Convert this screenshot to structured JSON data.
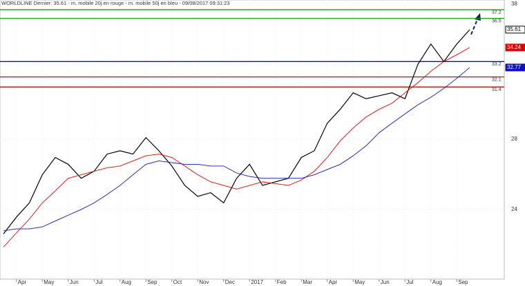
{
  "chart_data": {
    "type": "line",
    "log_scale": true,
    "grid": true,
    "title": "WORLDLINE Dernier: 35.61 - m. mobile 20j en rouge - m. mobile 50j en bleu - 09/08/2017 09:31:23",
    "categories": [
      null,
      "Apr",
      null,
      "May",
      null,
      "Jun",
      null,
      "Jul",
      null,
      "Aug",
      null,
      "Sep",
      null,
      "Oct",
      null,
      "Nov",
      null,
      "Dec",
      null,
      "2017",
      null,
      "Feb",
      null,
      "Mar",
      null,
      "Apr",
      null,
      "May",
      null,
      "Jun",
      null,
      "Jul",
      null,
      "Aug",
      null,
      "Sep",
      null
    ],
    "series": [
      {
        "name": "WORLDLINE",
        "color": "#000000",
        "values": [
          22.75,
          23.6,
          24.35,
          25.9,
          26.9,
          26.5,
          25.7,
          26.1,
          27.1,
          27.3,
          27.1,
          28.1,
          27.3,
          26.4,
          25.3,
          24.7,
          24.9,
          24.35,
          25.7,
          26.5,
          25.3,
          25.5,
          25.7,
          26.9,
          27.3,
          29.0,
          29.9,
          31.0,
          30.6,
          30.8,
          31.0,
          30.6,
          33.0,
          34.5,
          33.2,
          34.5,
          35.61
        ]
      },
      {
        "name": "m. mobile 20j",
        "color": "#e00000",
        "values": [
          22.1,
          22.8,
          23.5,
          24.35,
          25.0,
          25.7,
          25.9,
          26.1,
          26.3,
          26.4,
          26.7,
          27.0,
          27.1,
          26.9,
          26.4,
          25.9,
          25.5,
          25.3,
          25.1,
          25.3,
          25.5,
          25.4,
          25.3,
          25.6,
          26.1,
          26.9,
          27.9,
          28.7,
          29.4,
          29.9,
          30.3,
          31.0,
          31.7,
          32.5,
          33.2,
          33.7,
          34.24
        ]
      },
      {
        "name": "m. mobile 50j",
        "color": "#1010c0",
        "values": [
          22.9,
          23.0,
          23.0,
          23.1,
          23.4,
          23.7,
          24.0,
          24.35,
          24.8,
          25.3,
          25.9,
          26.5,
          26.7,
          26.6,
          26.5,
          26.5,
          26.4,
          26.4,
          26.0,
          25.8,
          25.7,
          25.7,
          25.7,
          25.7,
          25.9,
          26.2,
          26.5,
          27.0,
          27.6,
          28.4,
          29.0,
          29.6,
          30.2,
          30.7,
          31.3,
          32.0,
          32.77
        ]
      }
    ],
    "hlines": [
      {
        "value": 37.2,
        "color": "#1a9a1a"
      },
      {
        "value": 36.5,
        "color": "#1a9a1a"
      },
      {
        "value": 33.2,
        "color": "#1010b0"
      },
      {
        "value": 32.1,
        "color": "#e00000"
      },
      {
        "value": 31.4,
        "color": "#e00000"
      }
    ],
    "ylim": [
      20.6,
      38
    ],
    "yticks": [
      38,
      28,
      24
    ]
  }
}
